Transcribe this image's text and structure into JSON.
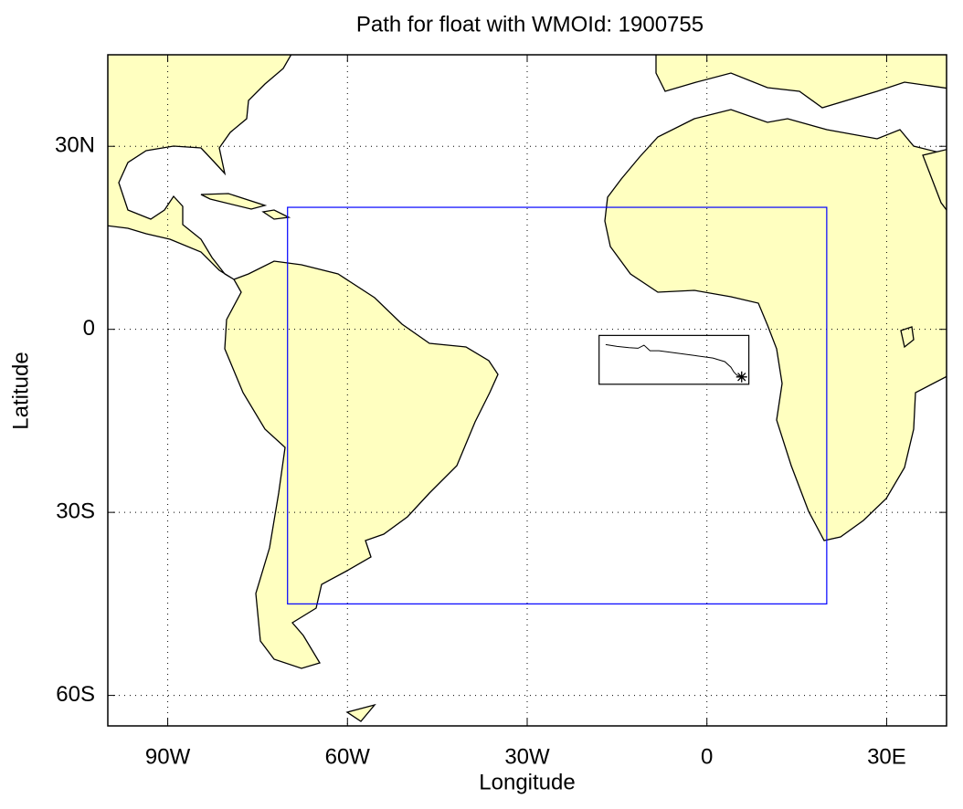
{
  "chart_data": {
    "type": "map",
    "title": "Path for float with WMOId: 1900755",
    "xlabel": "Longitude",
    "ylabel": "Latitude",
    "xlim": [
      -100,
      40
    ],
    "ylim": [
      -65,
      45
    ],
    "xticks": [
      {
        "value": -90,
        "label": "90W"
      },
      {
        "value": -60,
        "label": "60W"
      },
      {
        "value": -30,
        "label": "30W"
      },
      0,
      {
        "value": 30,
        "label": "30E"
      }
    ],
    "yticks": [
      {
        "value": -60,
        "label": "60S"
      },
      {
        "value": -30,
        "label": "30S"
      },
      0,
      {
        "value": 30,
        "label": "30N"
      }
    ],
    "grid": true,
    "land_color": "#ffffc0",
    "region": {
      "color": "#0000ff",
      "lon": [
        -70,
        20
      ],
      "lat": [
        -45,
        20
      ]
    },
    "track_box": {
      "color": "#000000",
      "lon": [
        -18,
        7
      ],
      "lat": [
        -9,
        -1
      ]
    },
    "track": {
      "color": "#000000",
      "lon": [
        -16.9,
        -15,
        -13,
        -11.5,
        -10.5,
        -9.5,
        -8,
        -5,
        -2,
        1,
        3,
        4,
        4.5,
        5,
        5.8
      ],
      "lat": [
        -2.5,
        -2.8,
        -3.0,
        -3.1,
        -2.6,
        -3.5,
        -3.5,
        -3.9,
        -4.3,
        -4.7,
        -5.3,
        -6.2,
        -7.0,
        -7.5,
        -7.8
      ]
    }
  }
}
